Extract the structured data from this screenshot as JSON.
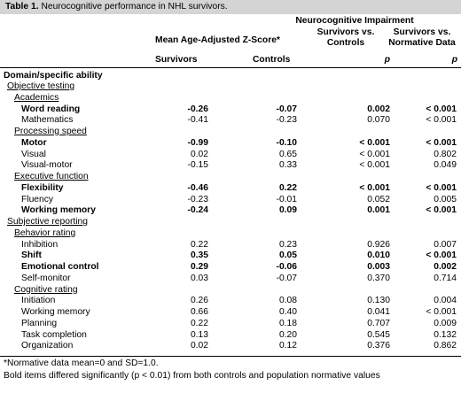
{
  "caption": {
    "label": "Table 1.",
    "text": "Neurocognitive performance in NHL survivors."
  },
  "header": {
    "group": "Neurocognitive Impairment",
    "zscore": "Mean Age-Adjusted Z-Score*",
    "svc_1": "Survivors vs.",
    "svc_2": "Controls",
    "svn_1": "Survivors vs.",
    "svn_2": "Normative Data",
    "domain": "Domain/specific ability",
    "survivors": "Survivors",
    "controls": "Controls",
    "p1": "p",
    "p2": "p"
  },
  "rows": [
    {
      "label": "Objective testing",
      "level": 1,
      "underline": true
    },
    {
      "label": "Academics",
      "level": 2,
      "underline": true
    },
    {
      "label": "Word reading",
      "level": 3,
      "bold": true,
      "survivors": "-0.26",
      "controls": "-0.07",
      "p_controls": "0.002",
      "p_normative": "< 0.001",
      "b1": true,
      "b2": true,
      "b3": true,
      "b4": true
    },
    {
      "label": "Mathematics",
      "level": 3,
      "survivors": "-0.41",
      "controls": "-0.23",
      "p_controls": "0.070",
      "p_normative": "< 0.001"
    },
    {
      "label": "Processing speed",
      "level": 2,
      "underline": true
    },
    {
      "label": "Motor",
      "level": 3,
      "bold": true,
      "survivors": "-0.99",
      "controls": "-0.10",
      "p_controls": "< 0.001",
      "p_normative": "< 0.001",
      "b1": true,
      "b2": true,
      "b3": true,
      "b4": true
    },
    {
      "label": "Visual",
      "level": 3,
      "survivors": "0.02",
      "controls": "0.65",
      "p_controls": "< 0.001",
      "p_normative": "0.802"
    },
    {
      "label": "Visual-motor",
      "level": 3,
      "survivors": "-0.15",
      "controls": "0.33",
      "p_controls": "< 0.001",
      "p_normative": "0.049"
    },
    {
      "label": "Executive function",
      "level": 2,
      "underline": true
    },
    {
      "label": "Flexibility",
      "level": 3,
      "bold": true,
      "survivors": "-0.46",
      "controls": "0.22",
      "p_controls": "< 0.001",
      "p_normative": "< 0.001",
      "b1": true,
      "b2": true,
      "b3": true,
      "b4": true
    },
    {
      "label": "Fluency",
      "level": 3,
      "survivors": "-0.23",
      "controls": "-0.01",
      "p_controls": "0.052",
      "p_normative": "0.005"
    },
    {
      "label": "Working memory",
      "level": 3,
      "bold": true,
      "survivors": "-0.24",
      "controls": "0.09",
      "p_controls": "0.001",
      "p_normative": "< 0.001",
      "b1": true,
      "b2": true,
      "b3": true,
      "b4": true
    },
    {
      "label": "Subjective reporting",
      "level": 1,
      "underline": true
    },
    {
      "label": "Behavior rating",
      "level": 2,
      "underline": true
    },
    {
      "label": "Inhibition",
      "level": 3,
      "survivors": "0.22",
      "controls": "0.23",
      "p_controls": "0.926",
      "p_normative": "0.007"
    },
    {
      "label": "Shift",
      "level": 3,
      "bold": true,
      "survivors": "0.35",
      "controls": "0.05",
      "p_controls": "0.010",
      "p_normative": "< 0.001",
      "b1": true,
      "b2": true,
      "b3": true,
      "b4": true
    },
    {
      "label": "Emotional control",
      "level": 3,
      "bold": true,
      "survivors": "0.29",
      "controls": "-0.06",
      "p_controls": "0.003",
      "p_normative": "0.002",
      "b1": true,
      "b2": true,
      "b3": true,
      "b4": true
    },
    {
      "label": "Self-monitor",
      "level": 3,
      "survivors": "0.03",
      "controls": "-0.07",
      "p_controls": "0.370",
      "p_normative": "0.714"
    },
    {
      "label": "Cognitive rating",
      "level": 2,
      "underline": true
    },
    {
      "label": "Initiation",
      "level": 3,
      "survivors": "0.26",
      "controls": "0.08",
      "p_controls": "0.130",
      "p_normative": "0.004"
    },
    {
      "label": "Working memory",
      "level": 3,
      "survivors": "0.66",
      "controls": "0.40",
      "p_controls": "0.041",
      "p_normative": "< 0.001"
    },
    {
      "label": "Planning",
      "level": 3,
      "survivors": "0.22",
      "controls": "0.18",
      "p_controls": "0.707",
      "p_normative": "0.009"
    },
    {
      "label": "Task completion",
      "level": 3,
      "survivors": "0.13",
      "controls": "0.20",
      "p_controls": "0.545",
      "p_normative": "0.132"
    },
    {
      "label": "Organization",
      "level": 3,
      "survivors": "0.02",
      "controls": "0.12",
      "p_controls": "0.376",
      "p_normative": "0.862"
    }
  ],
  "footnotes": [
    "*Normative data mean=0 and SD=1.0.",
    "Bold items differed significantly (p < 0.01) from both controls and population normative values"
  ]
}
